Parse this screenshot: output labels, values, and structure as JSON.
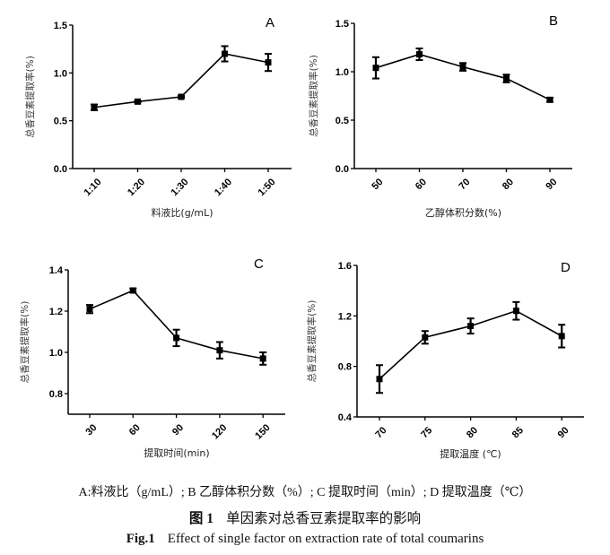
{
  "chart_data": [
    {
      "type": "line",
      "panel": "A",
      "title": "A",
      "xlabel": "料液比(g/mL)",
      "ylabel": "总香豆素提取率(%)",
      "categories": [
        "1:10",
        "1:20",
        "1:30",
        "1:40",
        "1:50"
      ],
      "values": [
        0.64,
        0.7,
        0.75,
        1.2,
        1.11
      ],
      "errors": [
        0.03,
        0.01,
        0.01,
        0.08,
        0.09
      ],
      "ylim": [
        0.0,
        1.5
      ],
      "yticks": [
        0.0,
        0.5,
        1.0,
        1.5
      ],
      "ytick_labels": [
        "0.0",
        "0.5",
        "1.0",
        "1.5"
      ],
      "grid": false
    },
    {
      "type": "line",
      "panel": "B",
      "title": "B",
      "xlabel": "乙醇体积分数(%)",
      "ylabel": "总香豆素提取率(%)",
      "categories": [
        "50",
        "60",
        "70",
        "80",
        "90"
      ],
      "values": [
        1.04,
        1.18,
        1.05,
        0.93,
        0.71
      ],
      "errors": [
        0.11,
        0.06,
        0.04,
        0.04,
        0.02
      ],
      "ylim": [
        0.0,
        1.5
      ],
      "yticks": [
        0.0,
        0.5,
        1.0,
        1.5
      ],
      "ytick_labels": [
        "0.0",
        "0.5",
        "1.0",
        "1.5"
      ],
      "grid": false
    },
    {
      "type": "line",
      "panel": "C",
      "title": "C",
      "xlabel": "提取时间(min)",
      "ylabel": "总香豆素提取率(%)",
      "categories": [
        "30",
        "60",
        "90",
        "120",
        "150"
      ],
      "values": [
        1.21,
        1.3,
        1.07,
        1.01,
        0.97
      ],
      "errors": [
        0.02,
        0.01,
        0.04,
        0.04,
        0.03
      ],
      "ylim": [
        0.7,
        1.4
      ],
      "yticks": [
        0.8,
        1.0,
        1.2,
        1.4
      ],
      "ytick_labels": [
        "0.8",
        "1.0",
        "1.2",
        "1.4"
      ],
      "grid": false
    },
    {
      "type": "line",
      "panel": "D",
      "title": "D",
      "xlabel": "提取温度 (℃)",
      "ylabel": "总香豆素提取率(%)",
      "categories": [
        "70",
        "75",
        "80",
        "85",
        "90"
      ],
      "values": [
        0.7,
        1.03,
        1.12,
        1.24,
        1.04
      ],
      "errors": [
        0.11,
        0.05,
        0.06,
        0.07,
        0.09
      ],
      "ylim": [
        0.4,
        1.6
      ],
      "yticks": [
        0.4,
        0.8,
        1.2,
        1.6
      ],
      "ytick_labels": [
        "0.4",
        "0.8",
        "1.2",
        "1.6"
      ],
      "grid": false
    }
  ],
  "caption": {
    "subtitle": "A:料液比（g/mL）; B 乙醇体积分数（%）; C 提取时间（min）; D 提取温度（℃）",
    "cn_fig_num": "图 1",
    "cn_title": "单因素对总香豆素提取率的影响",
    "en_fig_num": "Fig.1",
    "en_title": "Effect of single factor on extraction rate of total coumarins"
  },
  "colors": {
    "line": "#000000",
    "background": "#ffffff"
  }
}
